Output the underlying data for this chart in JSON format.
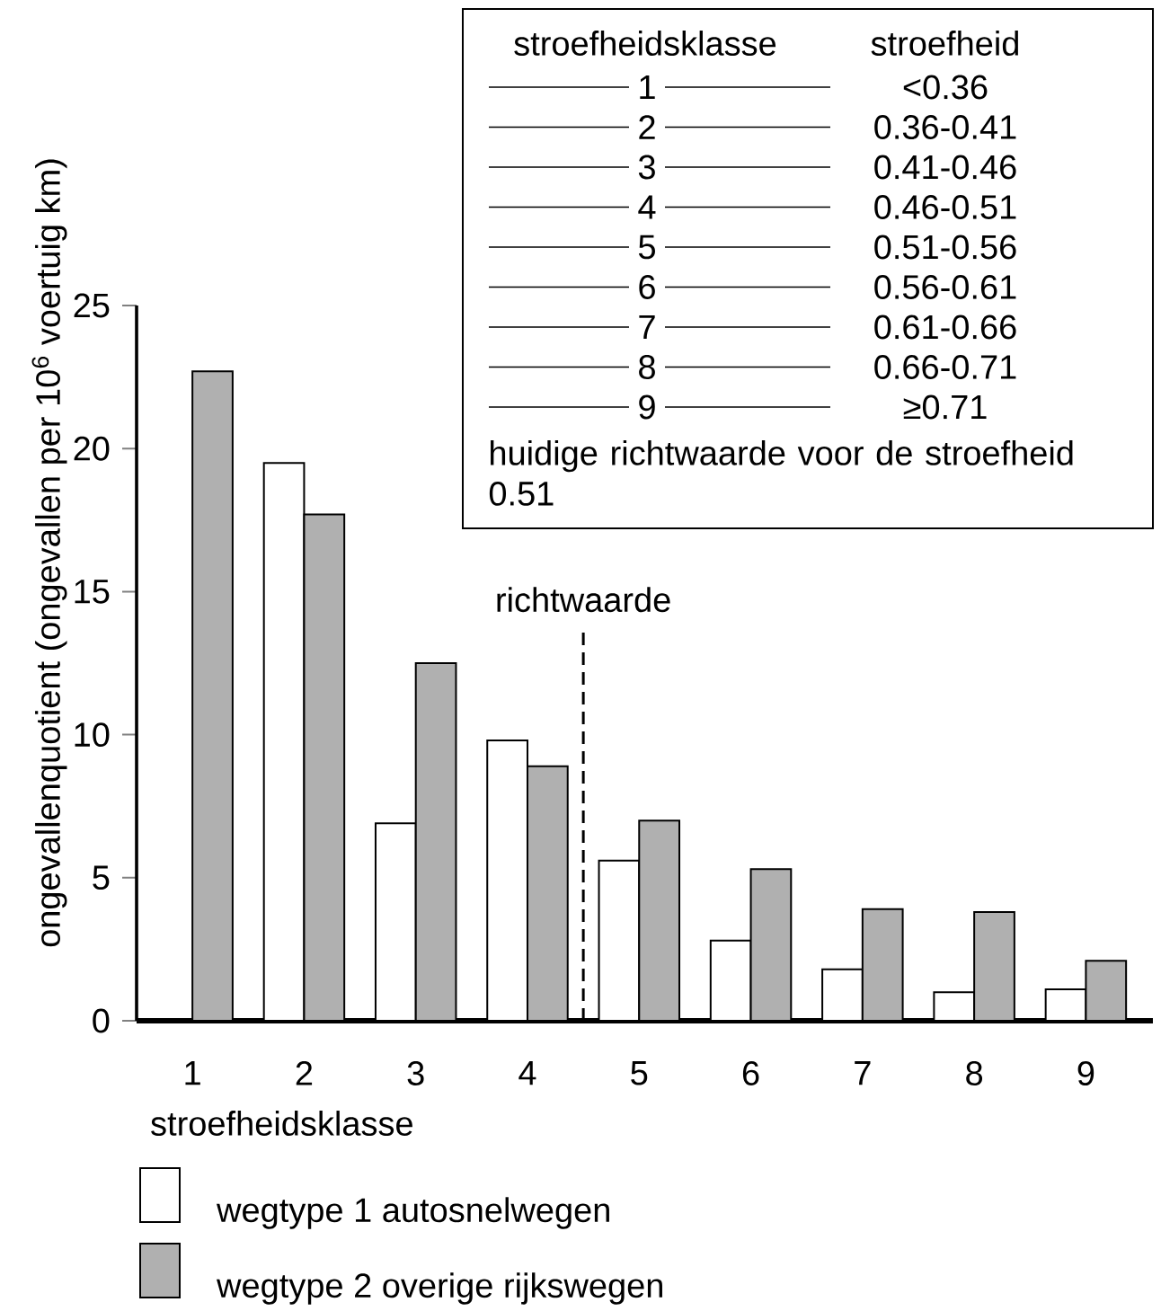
{
  "chart_data": {
    "type": "bar",
    "xlabel": "stroefheidsklasse",
    "ylabel": "ongevallenquotient (ongevallen per 10$^{6}$ voertuig km)",
    "x": [
      1,
      2,
      3,
      4,
      5,
      6,
      7,
      8,
      9
    ],
    "xlim": [
      0.5,
      9.6
    ],
    "xticks": [
      1,
      2,
      3,
      4,
      5,
      6,
      7,
      8,
      9
    ],
    "ylim": [
      0,
      25
    ],
    "yticks": [
      0,
      5,
      10,
      15,
      20,
      25
    ],
    "series": [
      {
        "name": "wegtype 1   autosnelwegen",
        "color": "#ffffff",
        "values": [
          null,
          19.5,
          6.9,
          9.8,
          5.6,
          2.8,
          1.8,
          1.0,
          1.1
        ]
      },
      {
        "name": "wegtype 2   overige rijkswegen",
        "color": "#b0b0b0",
        "values": [
          22.7,
          17.7,
          12.5,
          8.9,
          7.0,
          5.3,
          3.9,
          3.8,
          2.1
        ]
      }
    ],
    "ref_lines": [
      {
        "axis": "x",
        "value": 4.5,
        "label": "richtwaarde",
        "line_style": "dashed"
      }
    ],
    "legend": "bottom",
    "annotations": [
      "stroefheidsklasse",
      "stroefheid",
      "1",
      "<0.36",
      "2",
      "0.36-0.41",
      "3",
      "0.41-0.46",
      "4",
      "0.46-0.51",
      "5",
      "0.51-0.56",
      "6",
      "0.56-0.61",
      "7",
      "0.61-0.66",
      "8",
      "0.66-0.71",
      "9",
      "≥0.71",
      "huidige richtwaarde voor de stroefheid 0.51"
    ]
  }
}
